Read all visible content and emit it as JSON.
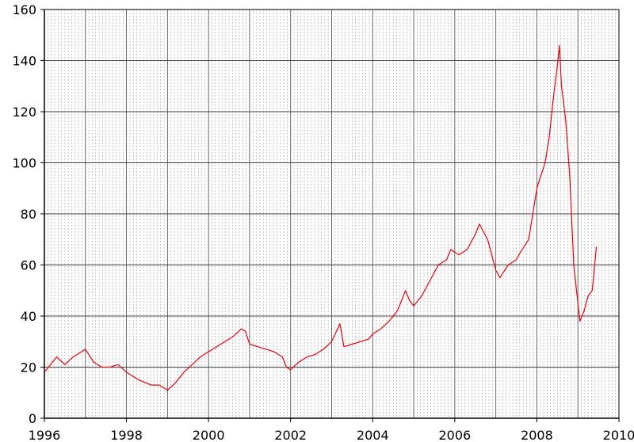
{
  "chart_data": {
    "type": "line",
    "title": "",
    "xlabel": "",
    "ylabel": "",
    "xlim": [
      1996,
      2010
    ],
    "ylim": [
      0,
      160
    ],
    "x_ticks": [
      1996,
      1998,
      2000,
      2002,
      2004,
      2006,
      2008,
      2010
    ],
    "y_ticks": [
      0,
      20,
      40,
      60,
      80,
      100,
      120,
      140,
      160
    ],
    "grid": true,
    "legend": "none",
    "line_color": "#e8000b",
    "series": [
      {
        "x": [
          1996.0,
          1996.1,
          1996.3,
          1996.5,
          1996.7,
          1996.9,
          1997.0,
          1997.2,
          1997.4,
          1997.6,
          1997.8,
          1998.0,
          1998.3,
          1998.6,
          1998.8,
          1999.0,
          1999.2,
          1999.4,
          1999.6,
          1999.8,
          2000.0,
          2000.2,
          2000.4,
          2000.6,
          2000.8,
          2000.9,
          2001.0,
          2001.2,
          2001.4,
          2001.6,
          2001.8,
          2001.9,
          2002.0,
          2002.2,
          2002.4,
          2002.6,
          2002.8,
          2003.0,
          2003.2,
          2003.3,
          2003.5,
          2003.7,
          2003.9,
          2004.0,
          2004.2,
          2004.4,
          2004.6,
          2004.8,
          2004.9,
          2005.0,
          2005.2,
          2005.4,
          2005.6,
          2005.8,
          2005.9,
          2006.1,
          2006.3,
          2006.5,
          2006.6,
          2006.8,
          2007.0,
          2007.1,
          2007.3,
          2007.5,
          2007.6,
          2007.8,
          2007.9,
          2008.0,
          2008.1,
          2008.2,
          2008.3,
          2008.4,
          2008.5,
          2008.55,
          2008.6,
          2008.7,
          2008.8,
          2008.9,
          2009.0,
          2009.05,
          2009.15,
          2009.25,
          2009.35,
          2009.45
        ],
        "y": [
          18,
          20,
          24,
          21,
          24,
          26,
          27,
          22,
          20,
          20,
          21,
          18,
          15,
          13,
          13,
          11,
          14,
          18,
          21,
          24,
          26,
          28,
          30,
          32,
          35,
          34,
          29,
          28,
          27,
          26,
          24,
          20,
          19,
          22,
          24,
          25,
          27,
          30,
          37,
          28,
          29,
          30,
          31,
          33,
          35,
          38,
          42,
          50,
          46,
          44,
          48,
          54,
          60,
          62,
          66,
          64,
          66,
          72,
          76,
          70,
          58,
          55,
          60,
          62,
          65,
          70,
          80,
          90,
          95,
          100,
          110,
          125,
          138,
          146,
          130,
          117,
          95,
          60,
          45,
          38,
          42,
          48,
          50,
          67
        ]
      }
    ]
  }
}
